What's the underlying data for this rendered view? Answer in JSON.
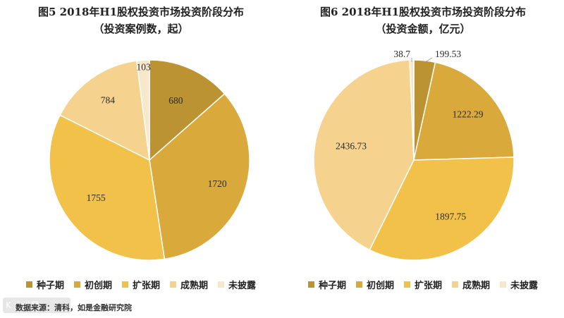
{
  "colors": {
    "seed": "#bc9332",
    "startup": "#d9a93c",
    "expansion": "#f1c14a",
    "mature": "#f5d38e",
    "undisclosed": "#f7e8cc",
    "stroke": "#ffffff"
  },
  "footer": {
    "source": "数据来源：清科，如是金融研究院",
    "watermark": "K 大世界"
  },
  "chart_data": [
    {
      "type": "pie",
      "title": "图5  2018年H1股权投资市场投资阶段分布",
      "subtitle": "（投资案例数，起）",
      "series": [
        {
          "name": "种子期",
          "value": 680,
          "label": "680"
        },
        {
          "name": "初创期",
          "value": 1720,
          "label": "1720"
        },
        {
          "name": "扩张期",
          "value": 1755,
          "label": "1755"
        },
        {
          "name": "成熟期",
          "value": 784,
          "label": "784"
        },
        {
          "name": "未披露",
          "value": 103,
          "label": "103"
        }
      ],
      "legend": [
        "种子期",
        "初创期",
        "扩张期",
        "成熟期",
        "未披露"
      ],
      "legend_position": "bottom"
    },
    {
      "type": "pie",
      "title": "图6  2018年H1股权投资市场投资阶段分布",
      "subtitle": "（投资金额，亿元）",
      "series": [
        {
          "name": "种子期",
          "value": 199.53,
          "label": "199.53"
        },
        {
          "name": "初创期",
          "value": 1222.29,
          "label": "1222.29"
        },
        {
          "name": "扩张期",
          "value": 1897.75,
          "label": "1897.75"
        },
        {
          "name": "成熟期",
          "value": 2436.73,
          "label": "2436.73"
        },
        {
          "name": "未披露",
          "value": 38.7,
          "label": "38.7"
        }
      ],
      "legend": [
        "种子期",
        "初创期",
        "扩张期",
        "成熟期",
        "未披露"
      ],
      "legend_position": "bottom"
    }
  ]
}
